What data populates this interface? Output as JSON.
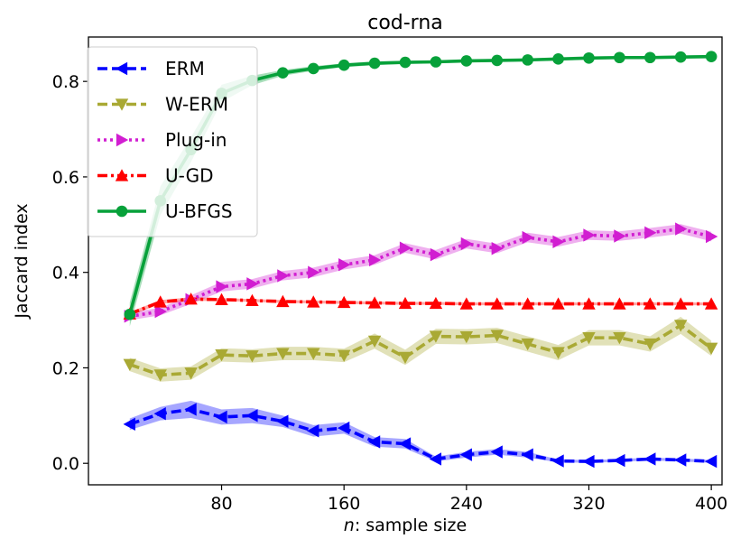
{
  "chart_data": {
    "type": "line",
    "title": "cod-rna",
    "xlabel_var": "n",
    "xlabel_rest": ":  sample size",
    "ylabel": "Jaccard index",
    "xlim": [
      -7,
      407
    ],
    "ylim": [
      -0.045,
      0.893
    ],
    "xticks": [
      80,
      160,
      240,
      320,
      400
    ],
    "yticks": [
      0.0,
      0.2,
      0.4,
      0.6,
      0.8
    ],
    "ytick_labels": [
      "0.0",
      "0.2",
      "0.4",
      "0.6",
      "0.8"
    ],
    "x": [
      20,
      40,
      60,
      80,
      100,
      120,
      140,
      160,
      180,
      200,
      220,
      240,
      260,
      280,
      300,
      320,
      340,
      360,
      380,
      400
    ],
    "legend_position": "top-left",
    "series": [
      {
        "name": "ERM",
        "color": "#0000ff",
        "marker": "triangle-left",
        "linestyle": "dashed",
        "values": [
          0.082,
          0.104,
          0.113,
          0.097,
          0.1,
          0.088,
          0.068,
          0.074,
          0.045,
          0.041,
          0.009,
          0.018,
          0.024,
          0.018,
          0.005,
          0.004,
          0.006,
          0.009,
          0.007,
          0.004
        ],
        "band": [
          0.012,
          0.014,
          0.018,
          0.016,
          0.016,
          0.012,
          0.012,
          0.012,
          0.01,
          0.01,
          0.005,
          0.006,
          0.006,
          0.006,
          0.003,
          0.003,
          0.003,
          0.003,
          0.003,
          0.003
        ]
      },
      {
        "name": "W-ERM",
        "color": "#a9a934",
        "marker": "triangle-down",
        "linestyle": "dashed",
        "values": [
          0.207,
          0.185,
          0.189,
          0.227,
          0.225,
          0.23,
          0.23,
          0.226,
          0.256,
          0.222,
          0.266,
          0.265,
          0.268,
          0.25,
          0.232,
          0.263,
          0.263,
          0.25,
          0.289,
          0.241
        ],
        "band": [
          0.014,
          0.014,
          0.014,
          0.014,
          0.014,
          0.014,
          0.014,
          0.014,
          0.016,
          0.016,
          0.016,
          0.016,
          0.016,
          0.016,
          0.016,
          0.016,
          0.016,
          0.016,
          0.018,
          0.016
        ]
      },
      {
        "name": "Plug-in",
        "color": "#d11ed1",
        "marker": "triangle-right",
        "linestyle": "dotted",
        "values": [
          0.308,
          0.318,
          0.343,
          0.37,
          0.376,
          0.393,
          0.4,
          0.416,
          0.426,
          0.451,
          0.437,
          0.46,
          0.45,
          0.473,
          0.464,
          0.478,
          0.476,
          0.483,
          0.491,
          0.475
        ],
        "band": [
          0.008,
          0.008,
          0.009,
          0.01,
          0.01,
          0.01,
          0.01,
          0.01,
          0.01,
          0.01,
          0.01,
          0.01,
          0.01,
          0.01,
          0.01,
          0.01,
          0.01,
          0.01,
          0.01,
          0.01
        ]
      },
      {
        "name": "U-GD",
        "color": "#ff0000",
        "marker": "triangle-up",
        "linestyle": "dashdot",
        "values": [
          0.313,
          0.338,
          0.344,
          0.343,
          0.341,
          0.339,
          0.338,
          0.337,
          0.336,
          0.335,
          0.335,
          0.334,
          0.334,
          0.334,
          0.334,
          0.334,
          0.334,
          0.334,
          0.334,
          0.334
        ],
        "band": [
          0.004,
          0.004,
          0.004,
          0.003,
          0.003,
          0.003,
          0.003,
          0.003,
          0.003,
          0.003,
          0.003,
          0.003,
          0.003,
          0.003,
          0.003,
          0.003,
          0.003,
          0.003,
          0.003,
          0.003
        ]
      },
      {
        "name": "U-BFGS",
        "color": "#07a13a",
        "marker": "circle",
        "linestyle": "solid",
        "values": [
          0.312,
          0.55,
          0.657,
          0.775,
          0.802,
          0.818,
          0.827,
          0.834,
          0.838,
          0.84,
          0.841,
          0.843,
          0.844,
          0.845,
          0.847,
          0.849,
          0.85,
          0.85,
          0.851,
          0.852
        ],
        "band": [
          0.025,
          0.03,
          0.026,
          0.018,
          0.01,
          0.006,
          0.005,
          0.004,
          0.004,
          0.003,
          0.003,
          0.003,
          0.003,
          0.003,
          0.003,
          0.003,
          0.003,
          0.003,
          0.003,
          0.003
        ]
      }
    ]
  }
}
